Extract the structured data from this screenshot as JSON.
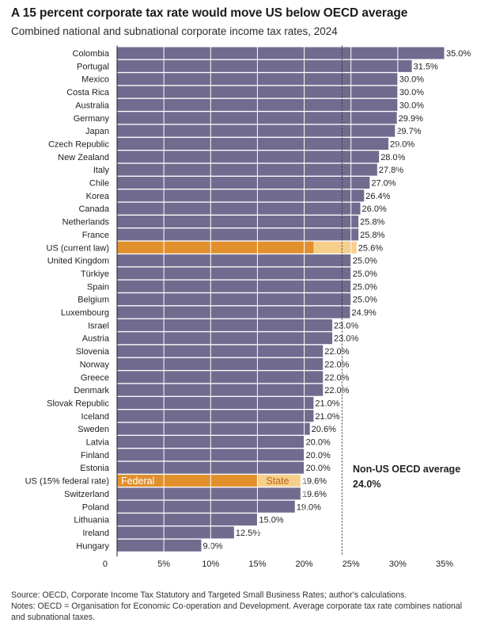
{
  "title": "A 15 percent corporate tax rate would move US below OECD average",
  "subtitle": "Combined national and subnational corporate income tax rates, 2024",
  "chart_data": {
    "type": "bar",
    "orientation": "horizontal",
    "categories": [
      "Colombia",
      "Portugal",
      "Mexico",
      "Costa Rica",
      "Australia",
      "Germany",
      "Japan",
      "Czech Republic",
      "New Zealand",
      "Italy",
      "Chile",
      "Korea",
      "Canada",
      "Netherlands",
      "France",
      "US (current law)",
      "United Kingdom",
      "Türkiye",
      "Spain",
      "Belgium",
      "Luxembourg",
      "Israel",
      "Austria",
      "Slovenia",
      "Norway",
      "Greece",
      "Denmark",
      "Slovak Republic",
      "Iceland",
      "Sweden",
      "Latvia",
      "Finland",
      "Estonia",
      "US (15% federal rate)",
      "Switzerland",
      "Poland",
      "Lithuania",
      "Ireland",
      "Hungary"
    ],
    "values": [
      35.0,
      31.5,
      30.0,
      30.0,
      30.0,
      29.9,
      29.7,
      29.0,
      28.0,
      27.8,
      27.0,
      26.4,
      26.0,
      25.8,
      25.8,
      25.6,
      25.0,
      25.0,
      25.0,
      25.0,
      24.9,
      23.0,
      23.0,
      22.0,
      22.0,
      22.0,
      22.0,
      21.0,
      21.0,
      20.6,
      20.0,
      20.0,
      20.0,
      19.6,
      19.6,
      19.0,
      15.0,
      12.5,
      9.0
    ],
    "value_labels": [
      "35.0%",
      "31.5%",
      "30.0%",
      "30.0%",
      "30.0%",
      "29.9%",
      "29.7%",
      "29.0%",
      "28.0%",
      "27.8%",
      "27.0%",
      "26.4%",
      "26.0%",
      "25.8%",
      "25.8%",
      "25.6%",
      "25.0%",
      "25.0%",
      "25.0%",
      "25.0%",
      "24.9%",
      "23.0%",
      "23.0%",
      "22.0%",
      "22.0%",
      "22.0%",
      "22.0%",
      "21.0%",
      "21.0%",
      "20.6%",
      "20.0%",
      "20.0%",
      "20.0%",
      "19.6%",
      "19.6%",
      "19.0%",
      "15.0%",
      "12.5%",
      "9.0%"
    ],
    "us_split": {
      "US (current law)": {
        "federal": 21.0,
        "state": 4.6
      },
      "US (15% federal rate)": {
        "federal": 15.0,
        "state": 4.6
      }
    },
    "segment_labels": {
      "federal": "Federal",
      "state": "State"
    },
    "average": {
      "value": 24.0,
      "label_line1": "Non-US OECD average",
      "label_line2": "24.0%"
    },
    "xlim": [
      0,
      35
    ],
    "xticks": [
      0,
      5,
      10,
      15,
      20,
      25,
      30,
      35
    ],
    "xtick_labels": [
      "0",
      "5%",
      "10%",
      "15%",
      "20%",
      "25%",
      "30%",
      "35%"
    ],
    "grid": true,
    "colors": {
      "bar": "#716b8f",
      "federal": "#e2902c",
      "state": "#f7cf8c",
      "grid": "#ffffff",
      "average_line": "#333333",
      "axis": "#222222"
    }
  },
  "notes": {
    "source": "Source: OECD, Corporate Income Tax Statutory and Targeted Small Business Rates; author's calculations.",
    "notes_text": "Notes: OECD = Organisation for Economic Co-operation and Development. Average corporate tax rate combines national and subnational taxes."
  }
}
